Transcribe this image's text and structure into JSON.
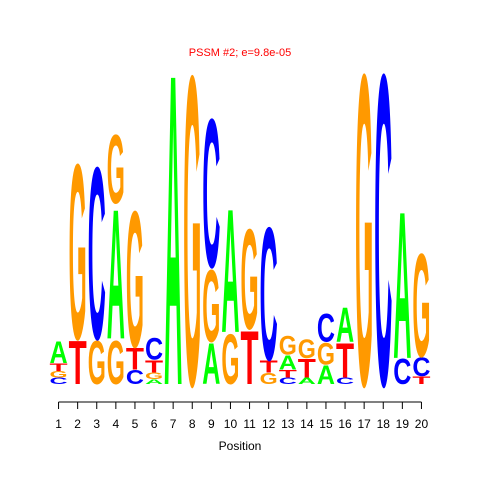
{
  "chart_data": {
    "type": "sequence-logo",
    "title": "PSSM #2; e=9.8e-05",
    "xlabel": "Position",
    "ylabel": "",
    "grid": false,
    "x": [
      1,
      2,
      3,
      4,
      5,
      6,
      7,
      8,
      9,
      10,
      11,
      12,
      13,
      14,
      15,
      16,
      17,
      18,
      19,
      20
    ],
    "xlim": [
      1,
      20
    ],
    "ylim": [
      0,
      2
    ],
    "letter_colors": {
      "A": "#00ff00",
      "C": "#0000ff",
      "G": "#ff9900",
      "T": "#ff0000"
    },
    "columns": [
      {
        "position": 1,
        "letters": [
          {
            "base": "C",
            "height": 0.04
          },
          {
            "base": "G",
            "height": 0.04
          },
          {
            "base": "T",
            "height": 0.05
          },
          {
            "base": "A",
            "height": 0.14
          }
        ]
      },
      {
        "position": 2,
        "letters": [
          {
            "base": "T",
            "height": 0.28
          },
          {
            "base": "G",
            "height": 1.12
          }
        ]
      },
      {
        "position": 3,
        "letters": [
          {
            "base": "G",
            "height": 0.28
          },
          {
            "base": "C",
            "height": 1.1
          }
        ]
      },
      {
        "position": 4,
        "letters": [
          {
            "base": "G",
            "height": 0.28
          },
          {
            "base": "A",
            "height": 0.83
          },
          {
            "base": "G",
            "height": 0.44
          }
        ]
      },
      {
        "position": 5,
        "letters": [
          {
            "base": "C",
            "height": 0.09
          },
          {
            "base": "T",
            "height": 0.14
          },
          {
            "base": "G",
            "height": 0.87
          }
        ]
      },
      {
        "position": 6,
        "letters": [
          {
            "base": "A",
            "height": 0.03
          },
          {
            "base": "G",
            "height": 0.04
          },
          {
            "base": "T",
            "height": 0.08
          },
          {
            "base": "C",
            "height": 0.14
          }
        ]
      },
      {
        "position": 7,
        "letters": [
          {
            "base": "A",
            "height": 1.99
          }
        ]
      },
      {
        "position": 8,
        "letters": [
          {
            "base": "G",
            "height": 1.98
          }
        ]
      },
      {
        "position": 9,
        "letters": [
          {
            "base": "A",
            "height": 0.26
          },
          {
            "base": "G",
            "height": 0.46
          },
          {
            "base": "C",
            "height": 0.95
          }
        ]
      },
      {
        "position": 10,
        "letters": [
          {
            "base": "G",
            "height": 0.32
          },
          {
            "base": "A",
            "height": 0.79
          }
        ]
      },
      {
        "position": 11,
        "letters": [
          {
            "base": "T",
            "height": 0.34
          },
          {
            "base": "G",
            "height": 0.64
          }
        ]
      },
      {
        "position": 12,
        "letters": [
          {
            "base": "G",
            "height": 0.07
          },
          {
            "base": "T",
            "height": 0.08
          },
          {
            "base": "C",
            "height": 0.85
          }
        ]
      },
      {
        "position": 13,
        "letters": [
          {
            "base": "C",
            "height": 0.04
          },
          {
            "base": "T",
            "height": 0.05
          },
          {
            "base": "A",
            "height": 0.09
          },
          {
            "base": "G",
            "height": 0.12
          }
        ]
      },
      {
        "position": 14,
        "letters": [
          {
            "base": "A",
            "height": 0.04
          },
          {
            "base": "T",
            "height": 0.12
          },
          {
            "base": "G",
            "height": 0.12
          }
        ]
      },
      {
        "position": 15,
        "letters": [
          {
            "base": "A",
            "height": 0.12
          },
          {
            "base": "G",
            "height": 0.14
          },
          {
            "base": "C",
            "height": 0.18
          }
        ]
      },
      {
        "position": 16,
        "letters": [
          {
            "base": "C",
            "height": 0.04
          },
          {
            "base": "T",
            "height": 0.22
          },
          {
            "base": "A",
            "height": 0.22
          }
        ]
      },
      {
        "position": 17,
        "letters": [
          {
            "base": "G",
            "height": 1.99
          }
        ]
      },
      {
        "position": 18,
        "letters": [
          {
            "base": "C",
            "height": 1.99
          }
        ]
      },
      {
        "position": 19,
        "letters": [
          {
            "base": "C",
            "height": 0.16
          },
          {
            "base": "A",
            "height": 0.94
          }
        ]
      },
      {
        "position": 20,
        "letters": [
          {
            "base": "T",
            "height": 0.05
          },
          {
            "base": "C",
            "height": 0.12
          },
          {
            "base": "G",
            "height": 0.66
          }
        ]
      }
    ]
  }
}
